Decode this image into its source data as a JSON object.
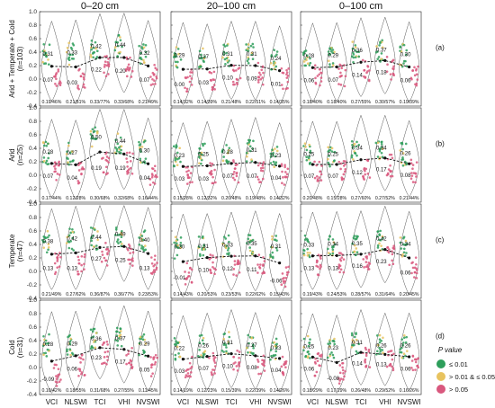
{
  "chart_data": {
    "type": "scatter",
    "columns": [
      "0–20 cm",
      "20–100 cm",
      "0–100 cm"
    ],
    "rows": [
      {
        "label": "Arid + Temperate + Cold (n=103)",
        "tag": "(a)"
      },
      {
        "label": "Arid (n=25)",
        "tag": "(b)"
      },
      {
        "label": "Temperate (n=47)",
        "tag": "(c)"
      },
      {
        "label": "Cold (n=31)",
        "tag": "(d)"
      }
    ],
    "categories": [
      "VCI",
      "NLSWI",
      "TCI",
      "VHI",
      "NVSWI"
    ],
    "yticks": [
      "-0.4",
      "-0.2",
      "0.0",
      "0.2",
      "0.4",
      "0.6",
      "0.8",
      "1.0"
    ],
    "ylim": [
      -0.4,
      1.0
    ],
    "legend": {
      "title": "P value",
      "items": [
        {
          "label": "≤ 0.01",
          "color": "#2e9e5b"
        },
        {
          "label": "> 0.01 & ≤  0.05",
          "color": "#e8c35f"
        },
        {
          "label": "> 0.05",
          "color": "#d9587e"
        }
      ]
    },
    "colors": {
      "green": "#2e9e5b",
      "yellow": "#e8c35f",
      "pink": "#d9587e"
    },
    "panels": [
      [
        {
          "pos_mean": [
            0.31,
            0.33,
            0.42,
            0.44,
            0.32
          ],
          "neg_mean": [
            0.07,
            0.03,
            0.22,
            0.2,
            0.07
          ],
          "stats": [
            "0.19/46%",
            "0.21/51%",
            "0.33/77%",
            "0.33/68%",
            "0.21/49%"
          ]
        },
        {
          "pos_mean": [
            0.29,
            0.27,
            0.31,
            0.31,
            0.24
          ],
          "neg_mean": [
            0.0,
            0.03,
            0.1,
            0.09,
            0.01
          ],
          "stats": [
            "0.14/32%",
            "0.14/39%",
            "0.21/48%",
            "0.22/51%",
            "0.14/35%"
          ]
        },
        {
          "pos_mean": [
            0.28,
            0.29,
            0.36,
            0.37,
            0.3
          ],
          "neg_mean": [
            0.06,
            0.07,
            0.14,
            0.18,
            0.06
          ],
          "stats": [
            "0.18/40%",
            "0.18/40%",
            "0.27/55%",
            "0.30/57%",
            "0.19/39%"
          ]
        }
      ],
      [
        {
          "pos_mean": [
            0.28,
            0.27,
            0.5,
            0.44,
            0.3
          ],
          "neg_mean": [
            0.07,
            0.04,
            0.19,
            0.19,
            0.04
          ],
          "stats": [
            "0.17/44%",
            "0.12/28%",
            "0.30/68%",
            "0.32/68%",
            "0.16/44%"
          ]
        },
        {
          "pos_mean": [
            0.23,
            0.25,
            0.28,
            0.31,
            0.23
          ],
          "neg_mean": [
            0.03,
            0.03,
            0.07,
            0.07,
            0.04
          ],
          "stats": [
            "0.15/28%",
            "0.12/32%",
            "0.20/48%",
            "0.19/48%",
            "0.14/32%"
          ]
        },
        {
          "pos_mean": [
            0.25,
            0.25,
            0.34,
            0.34,
            0.26
          ],
          "neg_mean": [
            0.07,
            0.07,
            0.12,
            0.17,
            0.08
          ],
          "stats": [
            "0.20/48%",
            "0.15/28%",
            "0.27/60%",
            "0.27/52%",
            "0.21/44%"
          ]
        }
      ],
      [
        {
          "pos_mean": [
            0.38,
            0.42,
            0.44,
            0.49,
            0.4
          ],
          "neg_mean": [
            0.13,
            0.13,
            0.27,
            0.25,
            0.13
          ],
          "stats": [
            "0.21/49%",
            "0.27/62%",
            "0.36/87%",
            "0.36/77%",
            "0.23/53%"
          ]
        },
        {
          "pos_mean": [
            0.3,
            0.31,
            0.33,
            0.35,
            0.31
          ],
          "neg_mean": [
            -0.01,
            0.1,
            0.12,
            0.11,
            -0.06
          ],
          "stats": [
            "0.14/43%",
            "0.20/53%",
            "0.23/53%",
            "0.22/62%",
            "0.15/43%"
          ]
        },
        {
          "pos_mean": [
            0.33,
            0.34,
            0.35,
            0.42,
            0.34
          ],
          "neg_mean": [
            0.13,
            0.13,
            0.16,
            0.23,
            0.06
          ],
          "stats": [
            "0.19/43%",
            "0.24/53%",
            "0.28/57%",
            "0.31/64%",
            "0.20/45%"
          ]
        }
      ],
      [
        {
          "pos_mean": [
            0.28,
            0.29,
            0.36,
            0.37,
            0.29
          ],
          "neg_mean": [
            -0.09,
            0.06,
            0.23,
            0.17,
            0.05
          ],
          "stats": [
            "0.10/42%",
            "0.18/55%",
            "0.31/68%",
            "0.27/55%",
            "0.11/45%"
          ]
        },
        {
          "pos_mean": [
            0.22,
            0.26,
            0.31,
            0.27,
            0.23
          ],
          "neg_mean": [
            0.03,
            0.07,
            0.1,
            0.08,
            0.04
          ],
          "stats": [
            "0.14/19%",
            "0.12/23%",
            "0.15/39%",
            "0.22/39%",
            "0.14/26%"
          ]
        },
        {
          "pos_mean": [
            0.25,
            0.23,
            0.31,
            0.26,
            0.26
          ],
          "neg_mean": [
            0.06,
            -0.08,
            0.14,
            0.13,
            0.06
          ],
          "stats": [
            "0.18/29%",
            "0.17/29%",
            "0.26/48%",
            "0.29/52%",
            "0.16/26%"
          ]
        }
      ]
    ]
  }
}
